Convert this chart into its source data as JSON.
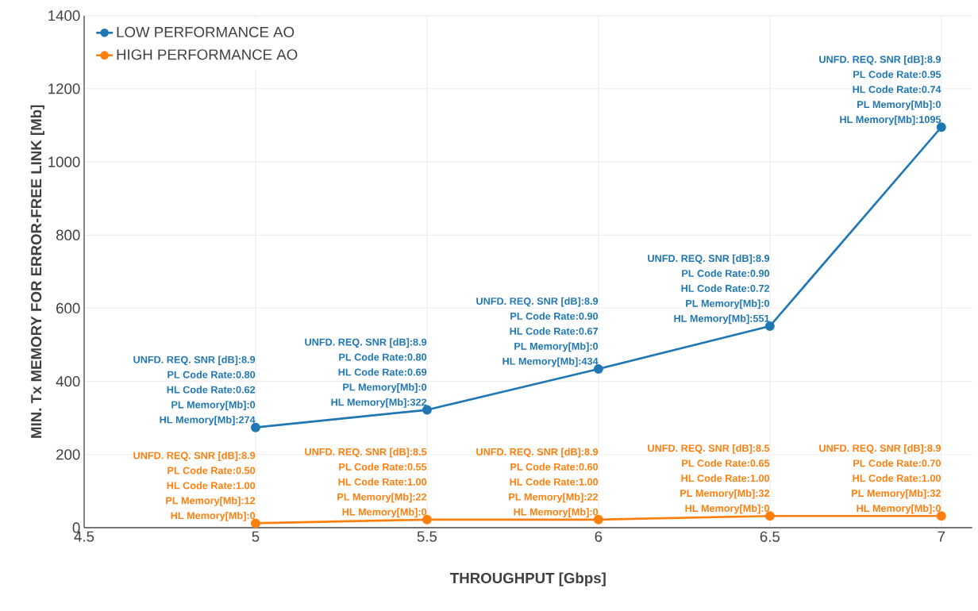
{
  "chart_data": {
    "type": "line",
    "xlabel": "THROUGHPUT [Gbps]",
    "ylabel": "MIN. Tx MEMORY FOR ERROR-FREE LINK [Mb]",
    "x": [
      5,
      5.5,
      6,
      6.5,
      7
    ],
    "series": [
      {
        "name": "LOW PERFORMANCE AO",
        "color": "#1f77b4",
        "values": [
          274,
          322,
          434,
          551,
          1095
        ]
      },
      {
        "name": "HIGH PERFORMANCE AO",
        "color": "#ff7f0e",
        "values": [
          12,
          22,
          22,
          32,
          32
        ]
      }
    ],
    "xlim": [
      4.5,
      7.09
    ],
    "ylim": [
      0,
      1400
    ],
    "xticks": [
      4.5,
      5,
      5.5,
      6,
      6.5,
      7
    ],
    "yticks": [
      0,
      200,
      400,
      600,
      800,
      1000,
      1200,
      1400
    ],
    "grid": true,
    "legend": "top left",
    "marker": "circle",
    "line_style": "solid",
    "annotations": [
      "UNFD. REQ. SNR [dB]:8.9",
      "PL Code Rate:0.80",
      "HL Code Rate:0.62",
      "PL Memory[Mb]:0",
      {
        "text": "HL Memory[Mb]:274",
        "x": 5,
        "y": 274
      },
      "UNFD. REQ. SNR [dB]:8.9",
      "PL Code Rate:0.80",
      "HL Code Rate:0.69",
      "PL Memory[Mb]:0",
      {
        "text": "HL Memory[Mb]:322",
        "x": 5.5,
        "y": 322
      },
      "UNFD. REQ. SNR [dB]:8.9",
      "PL Code Rate:0.90",
      "HL Code Rate:0.67",
      "PL Memory[Mb]:0",
      {
        "text": "HL Memory[Mb]:434",
        "x": 6,
        "y": 434
      },
      "UNFD. REQ. SNR [dB]:8.9",
      "PL Code Rate:0.90",
      "HL Code Rate:0.72",
      "PL Memory[Mb]:0",
      {
        "text": "HL Memory[Mb]:551",
        "x": 6.5,
        "y": 551
      },
      "UNFD. REQ. SNR [dB]:8.9",
      "PL Code Rate:0.95",
      "HL Code Rate:0.74",
      "PL Memory[Mb]:0",
      {
        "text": "HL Memory[Mb]:1095",
        "x": 7,
        "y": 1095
      },
      "UNFD. REQ. SNR [dB]:8.9",
      "PL Code Rate:0.50",
      "HL Code Rate:1.00",
      "PL Memory[Mb]:12",
      {
        "text": "HL Memory[Mb]:0",
        "x": 5,
        "y": 12
      },
      "UNFD. REQ. SNR [dB]:8.5",
      "PL Code Rate:0.55",
      "HL Code Rate:1.00",
      "PL Memory[Mb]:22",
      {
        "text": "HL Memory[Mb]:0",
        "x": 5.5,
        "y": 22
      },
      "UNFD. REQ. SNR [dB]:8.9",
      "PL Code Rate:0.60",
      "HL Code Rate:1.00",
      "PL Memory[Mb]:22",
      {
        "text": "HL Memory[Mb]:0",
        "x": 6,
        "y": 22
      },
      "UNFD. REQ. SNR [dB]:8.5",
      "PL Code Rate:0.65",
      "HL Code Rate:1.00",
      "PL Memory[Mb]:32",
      {
        "text": "HL Memory[Mb]:0",
        "x": 6.5,
        "y": 32
      },
      "UNFD. REQ. SNR [dB]:8.9",
      "PL Code Rate:0.70",
      "HL Code Rate:1.00",
      "PL Memory[Mb]:32",
      {
        "text": "HL Memory[Mb]:0",
        "x": 7,
        "y": 32
      }
    ]
  }
}
